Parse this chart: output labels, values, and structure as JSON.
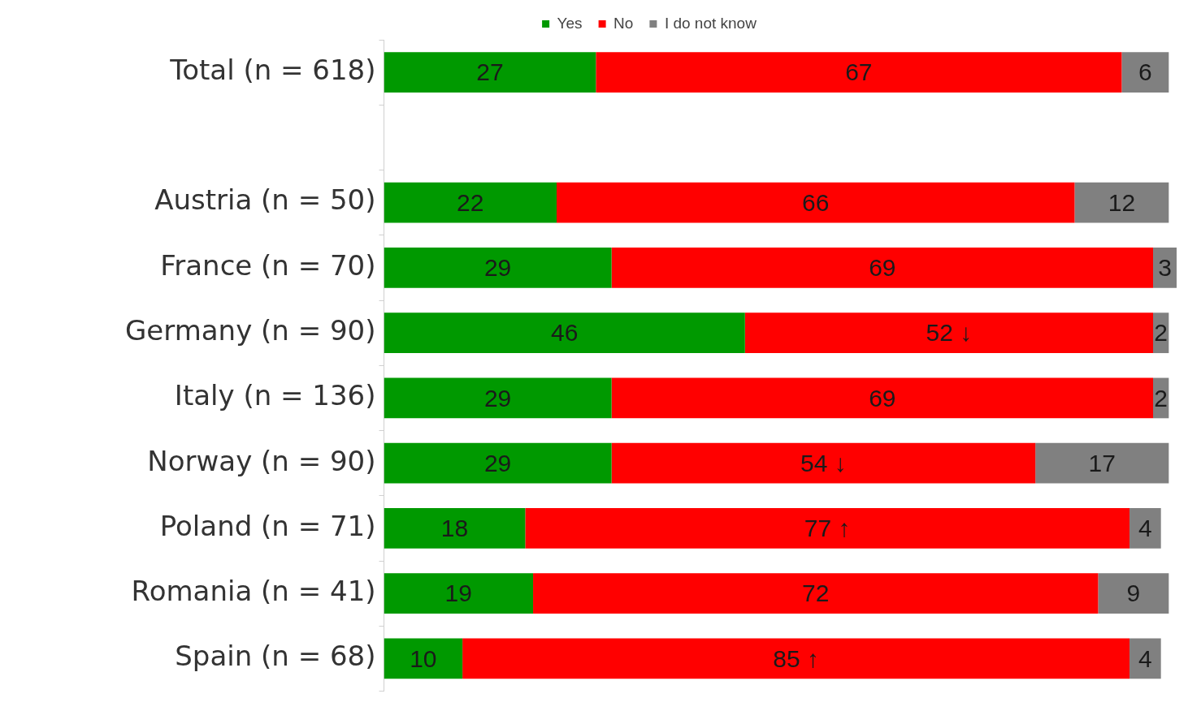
{
  "chart_data": {
    "type": "bar",
    "orientation": "horizontal",
    "stacked": true,
    "categories": [
      "Total (n = 618)",
      null,
      "Austria (n = 50)",
      "France (n = 70)",
      "Germany (n = 90)",
      "Italy (n = 136)",
      "Norway (n = 90)",
      "Poland (n = 71)",
      "Romania (n = 41)",
      "Spain (n = 68)"
    ],
    "series": [
      {
        "name": "Yes",
        "color": "#009900",
        "values": [
          27,
          null,
          22,
          29,
          46,
          29,
          29,
          18,
          19,
          10
        ],
        "value_labels": [
          "27",
          null,
          "22",
          "29",
          "46",
          "29",
          "29",
          "18",
          "19",
          "10"
        ]
      },
      {
        "name": "No",
        "color": "#ff0000",
        "values": [
          67,
          null,
          66,
          69,
          52,
          69,
          54,
          77,
          72,
          85
        ],
        "value_labels": [
          "67",
          null,
          "66",
          "69",
          "52 ↓",
          "69",
          "54 ↓",
          "77 ↑",
          "72",
          "85 ↑"
        ]
      },
      {
        "name": "I do not know",
        "color": "#808080",
        "values": [
          6,
          null,
          12,
          3,
          2,
          2,
          17,
          4,
          9,
          4
        ],
        "value_labels": [
          "6",
          null,
          "12",
          "3",
          "2",
          "2",
          "17",
          "4",
          "9",
          "4"
        ]
      }
    ],
    "xlim": [
      0,
      101
    ],
    "legend": "top",
    "grid": false
  }
}
